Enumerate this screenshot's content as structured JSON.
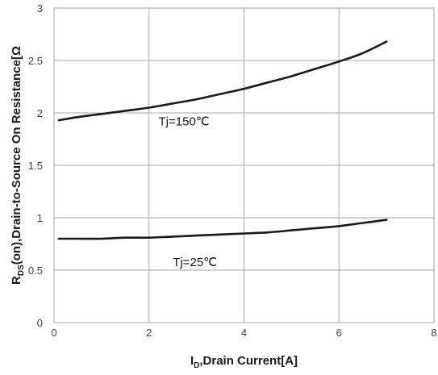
{
  "chart_data": {
    "type": "line",
    "title": "",
    "xlabel": {
      "main": "I",
      "sub": "D",
      "rest": ",Drain Current[A]"
    },
    "ylabel": {
      "main": "R",
      "sub": "DS",
      "rest": "(on),Drain-to-Source On Resistance[Ω"
    },
    "xlim": [
      0,
      8
    ],
    "ylim": [
      0,
      3
    ],
    "xticks": [
      0,
      2,
      4,
      6,
      8
    ],
    "xtick_labels": [
      "0",
      "2",
      "4",
      "6",
      "8"
    ],
    "yticks": [
      0,
      0.5,
      1,
      1.5,
      2,
      2.5,
      3
    ],
    "ytick_labels": [
      "0",
      "0.5",
      "1",
      "1.5",
      "2",
      "2.5",
      "3"
    ],
    "grid": true,
    "series": [
      {
        "name": "Tj=150℃",
        "color": "#1a1a1a",
        "x": [
          0.1,
          0.5,
          1,
          1.5,
          2,
          2.5,
          3,
          3.5,
          4,
          4.5,
          5,
          5.5,
          6,
          6.5,
          7
        ],
        "y": [
          1.93,
          1.96,
          1.99,
          2.02,
          2.05,
          2.09,
          2.13,
          2.18,
          2.23,
          2.29,
          2.35,
          2.42,
          2.49,
          2.57,
          2.68
        ]
      },
      {
        "name": "Tj=25℃",
        "color": "#1a1a1a",
        "x": [
          0.1,
          0.5,
          1,
          1.5,
          2,
          2.5,
          3,
          3.5,
          4,
          4.5,
          5,
          5.5,
          6,
          6.5,
          7
        ],
        "y": [
          0.8,
          0.8,
          0.8,
          0.81,
          0.81,
          0.82,
          0.83,
          0.84,
          0.85,
          0.86,
          0.88,
          0.9,
          0.92,
          0.95,
          0.98
        ]
      }
    ],
    "annotations": [
      {
        "text": "Tj=150℃",
        "x": 2.2,
        "y": 1.88
      },
      {
        "text": "Tj=25℃",
        "x": 2.5,
        "y": 0.54
      }
    ]
  }
}
